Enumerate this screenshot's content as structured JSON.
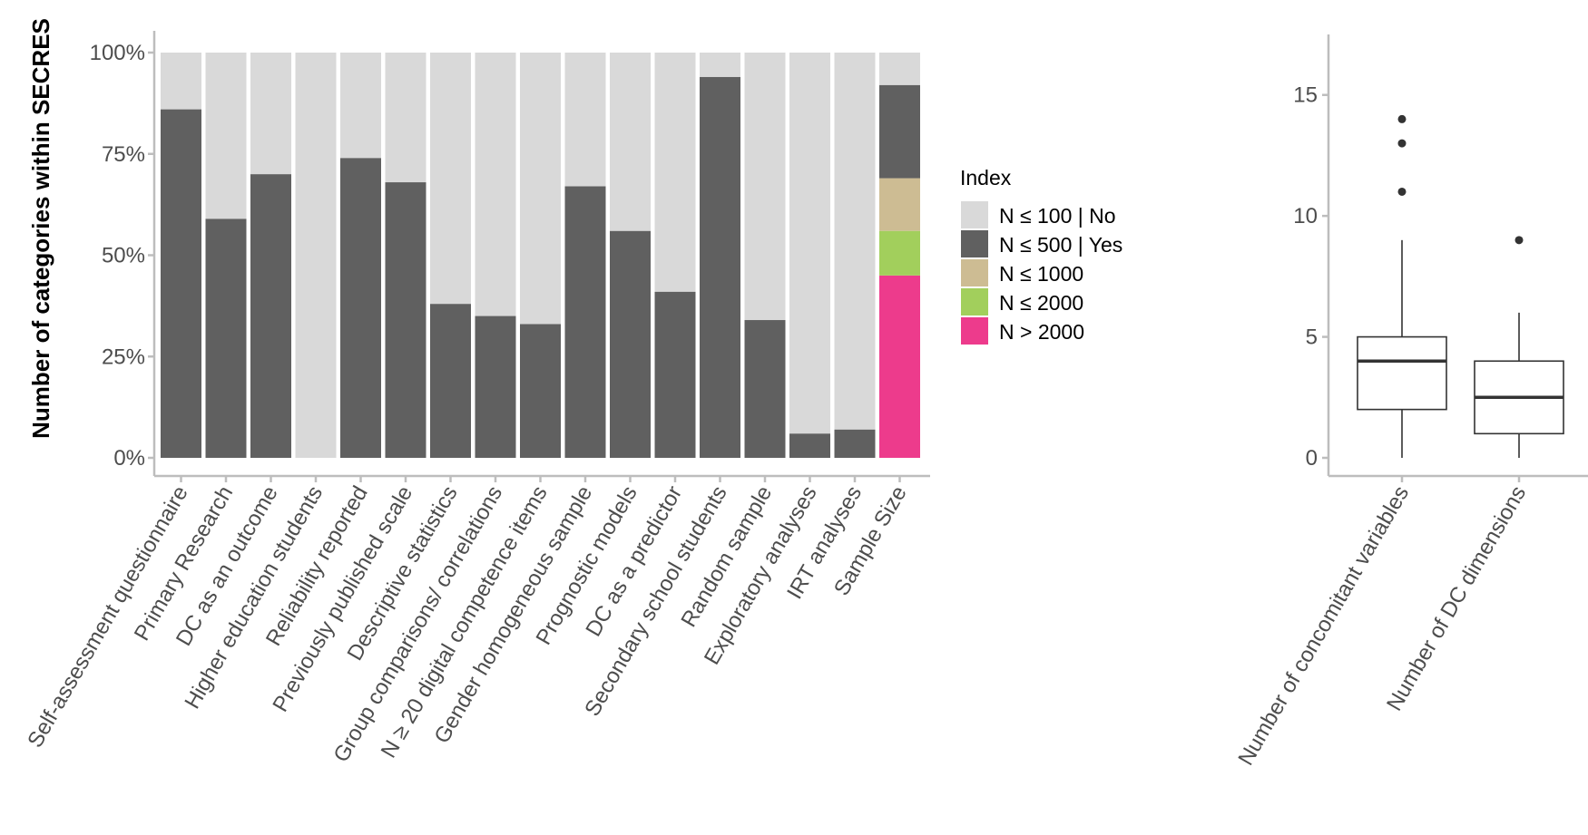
{
  "chart_data": [
    {
      "type": "bar",
      "stacked": true,
      "ylabel": "Number of categories within SECRES",
      "xlabel": "",
      "ylim": [
        0,
        1
      ],
      "yticks": [
        "0%",
        "25%",
        "50%",
        "75%",
        "100%"
      ],
      "grid": false,
      "legend_position": "right",
      "legend": {
        "title": "Index",
        "entries": [
          {
            "label": "N ≤ 100 | No",
            "color": "#d9d9d9"
          },
          {
            "label": "N ≤ 500 | Yes",
            "color": "#606060"
          },
          {
            "label": "N ≤ 1000",
            "color": "#cdbc93"
          },
          {
            "label": "N ≤ 2000",
            "color": "#a2cf5c"
          },
          {
            "label": "N > 2000",
            "color": "#ed3b8c"
          }
        ]
      },
      "categories": [
        "Self-assessment questionnaire",
        "Primary Research",
        "DC as an outcome",
        "Higher education students",
        "Reliability reported",
        "Previously published scale",
        "Descriptive statistics",
        "Group comparisons/ correlations",
        "N ≥ 20 digital competence items",
        "Gender homogeneous sample",
        "Prognostic models",
        "DC as a predictor",
        "Secondary school students",
        "Random sample",
        "Exploratory analyses",
        "IRT analyses",
        "Sample Size"
      ],
      "series": [
        {
          "name": "N > 2000",
          "color": "#ed3b8c",
          "values": [
            0,
            0,
            0,
            0,
            0,
            0,
            0,
            0,
            0,
            0,
            0,
            0,
            0,
            0,
            0,
            0,
            0.45
          ]
        },
        {
          "name": "N ≤ 2000",
          "color": "#a2cf5c",
          "values": [
            0,
            0,
            0,
            0,
            0,
            0,
            0,
            0,
            0,
            0,
            0,
            0,
            0,
            0,
            0,
            0,
            0.11
          ]
        },
        {
          "name": "N ≤ 1000",
          "color": "#cdbc93",
          "values": [
            0,
            0,
            0,
            0,
            0,
            0,
            0,
            0,
            0,
            0,
            0,
            0,
            0,
            0,
            0,
            0,
            0.13
          ]
        },
        {
          "name": "N ≤ 500 | Yes",
          "color": "#606060",
          "values": [
            0.86,
            0.59,
            0.7,
            0,
            0.74,
            0.68,
            0.38,
            0.35,
            0.33,
            0.67,
            0.56,
            0.41,
            0.94,
            0.34,
            0.06,
            0.07,
            0.23
          ]
        },
        {
          "name": "N ≤ 100 | No",
          "color": "#d9d9d9",
          "values": [
            0.14,
            0.41,
            0.3,
            1.0,
            0.26,
            0.32,
            0.62,
            0.65,
            0.67,
            0.33,
            0.44,
            0.59,
            0.06,
            0.66,
            0.94,
            0.93,
            0.08
          ]
        }
      ]
    },
    {
      "type": "box",
      "ylim": [
        0,
        17.5
      ],
      "yticks": [
        0,
        5,
        10,
        15
      ],
      "categories": [
        "Number of concomitant variables",
        "Number of DC dimensions"
      ],
      "boxes": [
        {
          "name": "Number of concomitant variables",
          "min": 0,
          "q1": 2,
          "median": 4,
          "q3": 5,
          "max": 9,
          "outliers": [
            11,
            13,
            14
          ]
        },
        {
          "name": "Number of DC dimensions",
          "min": 0,
          "q1": 1,
          "median": 2.5,
          "q3": 4,
          "max": 6,
          "outliers": [
            9
          ]
        }
      ]
    }
  ]
}
